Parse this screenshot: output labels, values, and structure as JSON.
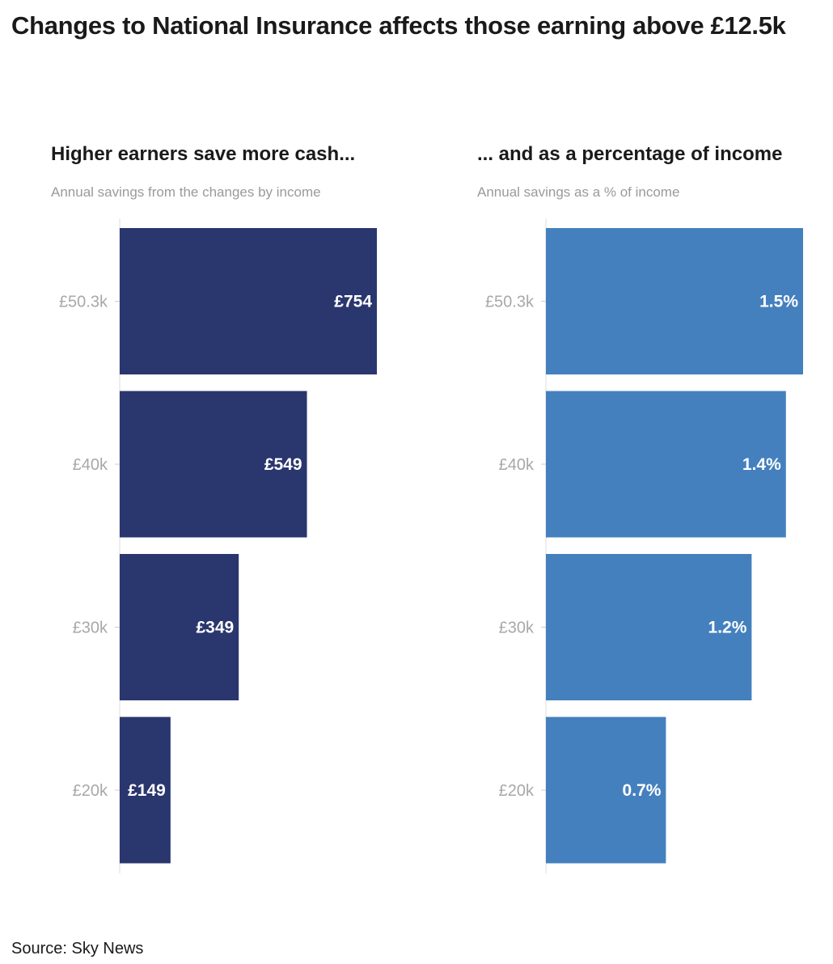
{
  "title": "Changes to National Insurance affects those earning above £12.5k",
  "source": "Source: Sky News",
  "colors": {
    "left_bars": "#2a366e",
    "right_bars": "#4480be",
    "tick_text": "#a8a8a8",
    "bar_label": "#ffffff"
  },
  "chart_data": [
    {
      "type": "bar",
      "orientation": "horizontal",
      "title": "Higher earners save more cash...",
      "subtitle": "Annual savings from the changes by income",
      "categories": [
        "£50.3k",
        "£40k",
        "£30k",
        "£20k"
      ],
      "values": [
        754,
        549,
        349,
        149
      ],
      "labels": [
        "£754",
        "£549",
        "£349",
        "£149"
      ],
      "xlim": [
        0,
        754
      ],
      "grid": false,
      "color": "#2a366e"
    },
    {
      "type": "bar",
      "orientation": "horizontal",
      "title": "... and as a percentage of income",
      "subtitle": "Annual savings as a % of income",
      "categories": [
        "£50.3k",
        "£40k",
        "£30k",
        "£20k"
      ],
      "values": [
        1.5,
        1.4,
        1.2,
        0.7
      ],
      "labels": [
        "1.5%",
        "1.4%",
        "1.2%",
        "0.7%"
      ],
      "xlim": [
        0,
        1.5
      ],
      "grid": false,
      "color": "#4480be"
    }
  ]
}
